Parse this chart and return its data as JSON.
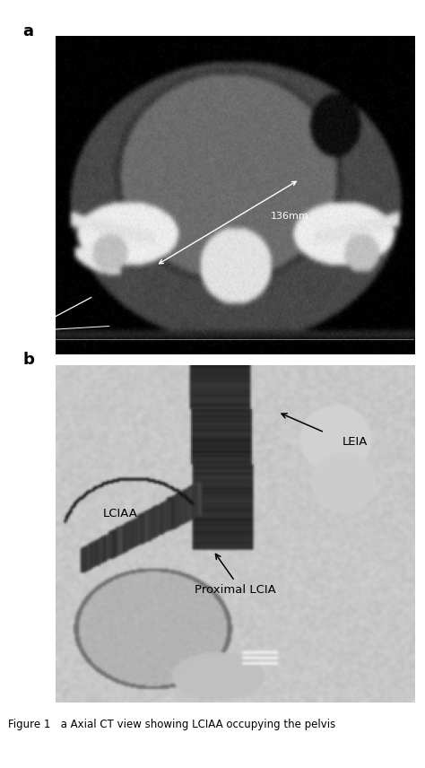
{
  "panel_a_label": "a",
  "panel_b_label": "b",
  "panel_a_annotation": "136mm",
  "panel_b_labels": [
    "Proximal LCIA",
    "LCIAA",
    "LEIA"
  ],
  "caption": "Figure 1   a Axial CT view showing LCIAA occupying the pelvis",
  "bg_color": "#ffffff",
  "label_fontsize": 13,
  "annotation_fontsize": 8,
  "caption_fontsize": 8.5
}
